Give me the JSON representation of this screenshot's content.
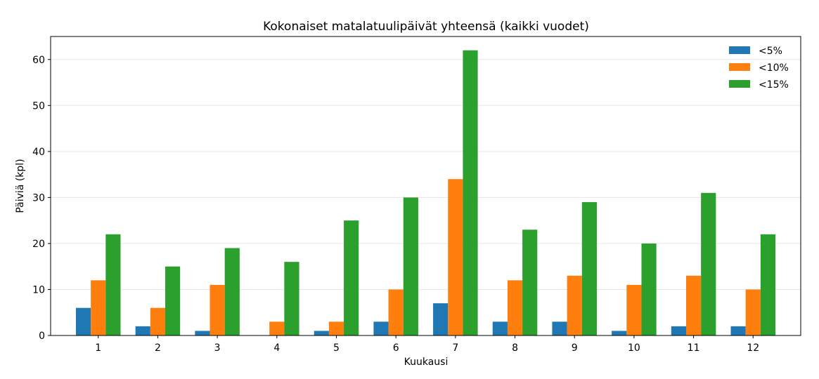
{
  "chart_data": {
    "type": "bar",
    "title": "Kokonaiset matalatuulipäivät yhteensä (kaikki vuodet)",
    "xlabel": "Kuukausi",
    "ylabel": "Päiviä (kpl)",
    "categories": [
      "1",
      "2",
      "3",
      "4",
      "5",
      "6",
      "7",
      "8",
      "9",
      "10",
      "11",
      "12"
    ],
    "ylim": [
      0,
      65
    ],
    "yticks": [
      0,
      10,
      20,
      30,
      40,
      50,
      60
    ],
    "grid": "y",
    "legend_position": "top-right",
    "series": [
      {
        "name": "<5%",
        "color": "#1f77b4",
        "values": [
          6,
          2,
          1,
          0,
          1,
          3,
          7,
          3,
          3,
          1,
          2,
          2
        ]
      },
      {
        "name": "<10%",
        "color": "#ff7f0e",
        "values": [
          12,
          6,
          11,
          3,
          3,
          10,
          34,
          12,
          13,
          11,
          13,
          10
        ]
      },
      {
        "name": "<15%",
        "color": "#2ca02c",
        "values": [
          22,
          15,
          19,
          16,
          25,
          30,
          62,
          23,
          29,
          20,
          31,
          22
        ]
      }
    ]
  }
}
